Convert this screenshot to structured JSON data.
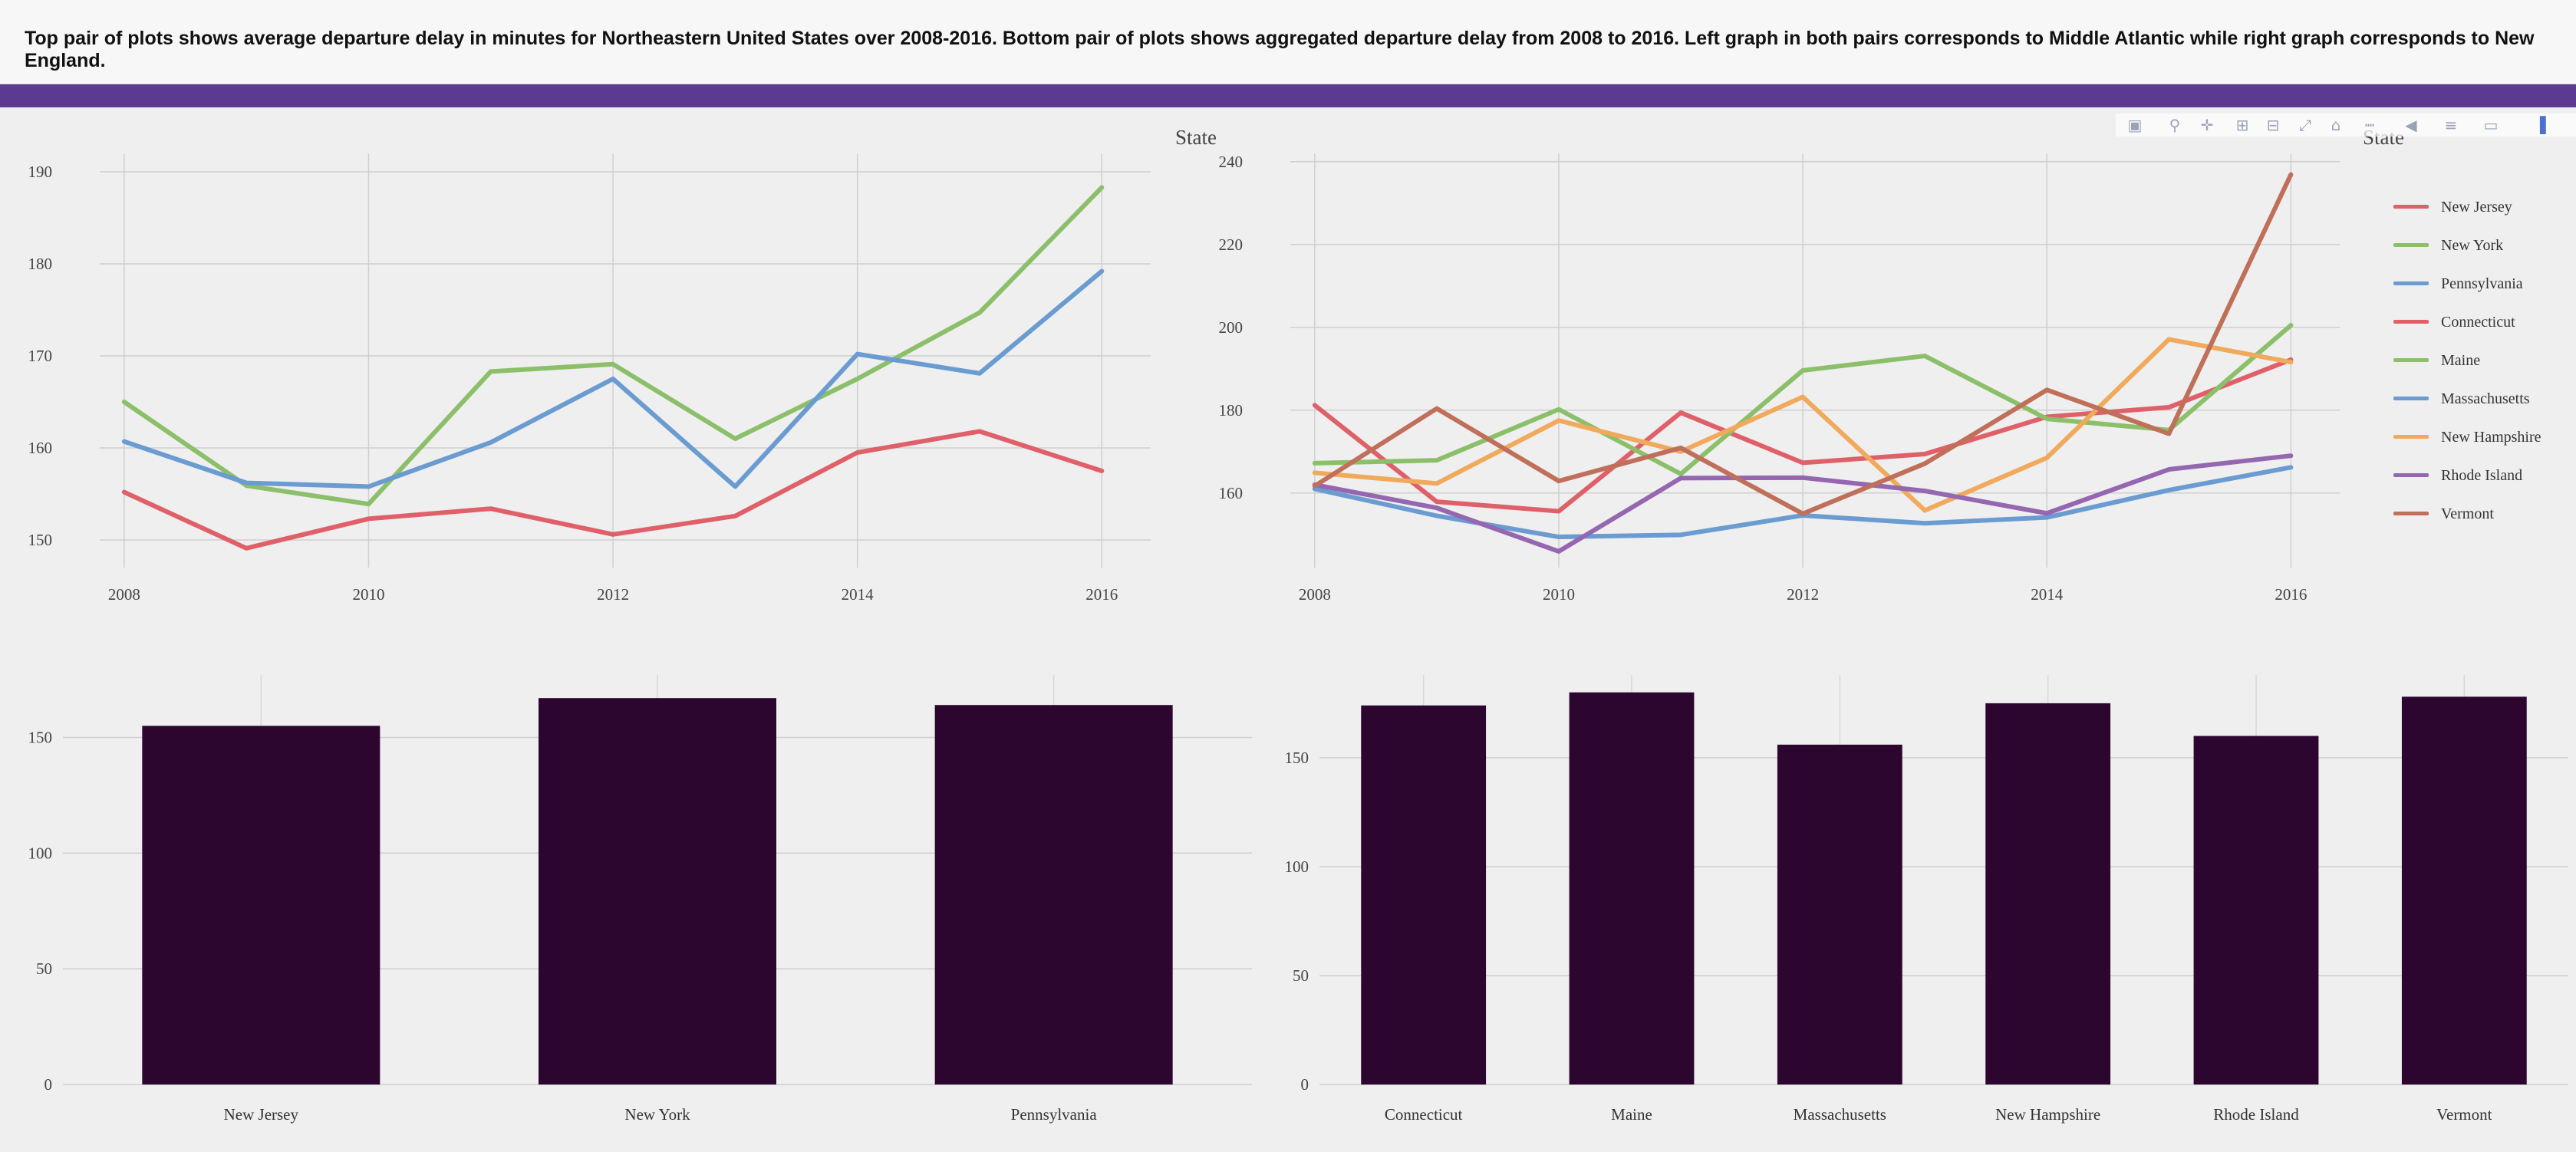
{
  "header": {
    "description": "Top pair of plots shows average departure delay in minutes for Northeastern United States over 2008-2016. Bottom pair of plots shows aggregated departure delay from 2008 to 2016. Left graph in both pairs corresponds to Middle Atlantic while right graph corresponds to New England."
  },
  "colors": {
    "red": "#e0606a",
    "green": "#8cbf6a",
    "blue": "#6a9bd1",
    "orange": "#f1a95b",
    "purple": "#9467b0",
    "brown": "#c0705a",
    "bar": "#2d0630",
    "header_bar": "#5b3b91"
  },
  "toolbar": {
    "icons": [
      "camera-icon",
      "zoom-icon",
      "pan-icon",
      "zoom-in-icon",
      "zoom-out-icon",
      "autoscale-icon",
      "reset-axes-icon",
      "spike-lines-icon",
      "hover-closest-icon",
      "hover-compare-icon",
      "book-icon",
      "plotly-logo-icon"
    ]
  },
  "chart_data": [
    {
      "id": "ma_line",
      "type": "line",
      "region": "Middle Atlantic",
      "x": [
        2008,
        2009,
        2010,
        2011,
        2012,
        2013,
        2014,
        2015,
        2016
      ],
      "xticks": [
        "2008",
        "2010",
        "2012",
        "2014",
        "2016"
      ],
      "xtick_values": [
        2008,
        2010,
        2012,
        2014,
        2016
      ],
      "xlim": [
        2007.8,
        2016.4
      ],
      "ylim": [
        147,
        192
      ],
      "yticks": [
        150,
        160,
        170,
        180,
        190
      ],
      "ytick_labels": [
        "150",
        "160",
        "170",
        "180",
        "190"
      ],
      "series": [
        {
          "name": "New Jersey",
          "color": "#e0606a",
          "values": [
            155.2,
            149.1,
            152.3,
            153.4,
            150.6,
            152.6,
            159.5,
            161.8,
            157.5
          ]
        },
        {
          "name": "New York",
          "color": "#8cbf6a",
          "values": [
            165.0,
            155.9,
            153.9,
            168.3,
            169.1,
            161.0,
            167.5,
            174.7,
            188.3
          ]
        },
        {
          "name": "Pennsylvania",
          "color": "#6a9bd1",
          "values": [
            160.7,
            156.2,
            155.8,
            160.6,
            167.5,
            155.8,
            170.2,
            168.1,
            179.2
          ]
        }
      ]
    },
    {
      "id": "ne_line",
      "type": "line",
      "region": "New England",
      "x": [
        2008,
        2009,
        2010,
        2011,
        2012,
        2013,
        2014,
        2015,
        2016
      ],
      "xticks": [
        "2008",
        "2010",
        "2012",
        "2014",
        "2016"
      ],
      "xtick_values": [
        2008,
        2010,
        2012,
        2014,
        2016
      ],
      "xlim": [
        2007.8,
        2016.4
      ],
      "ylim": [
        142,
        242
      ],
      "yticks": [
        160,
        180,
        200,
        220,
        240
      ],
      "ytick_labels": [
        "160",
        "180",
        "200",
        "220",
        "240"
      ],
      "legend_title": "State",
      "series": [
        {
          "name": "Connecticut",
          "color": "#e0606a",
          "values": [
            181.2,
            157.9,
            155.6,
            179.4,
            167.3,
            169.4,
            178.4,
            180.7,
            192.2
          ]
        },
        {
          "name": "Maine",
          "color": "#8cbf6a",
          "values": [
            167.2,
            167.9,
            180.2,
            164.6,
            189.6,
            193.1,
            177.9,
            175.2,
            200.5
          ]
        },
        {
          "name": "Massachusetts",
          "color": "#6a9bd1",
          "values": [
            161.0,
            154.5,
            149.4,
            149.9,
            154.6,
            152.7,
            154.1,
            160.7,
            166.2
          ]
        },
        {
          "name": "New Hampshire",
          "color": "#f1a95b",
          "values": [
            164.9,
            162.3,
            177.5,
            170.0,
            183.2,
            155.8,
            168.5,
            197.1,
            191.6
          ]
        },
        {
          "name": "Rhode Island",
          "color": "#9467b0",
          "values": [
            162.0,
            156.4,
            145.9,
            163.6,
            163.7,
            160.5,
            155.1,
            165.7,
            169.0
          ]
        },
        {
          "name": "Vermont",
          "color": "#c0705a",
          "values": [
            161.7,
            180.4,
            162.9,
            170.9,
            155.0,
            167.1,
            184.9,
            174.3,
            236.9
          ]
        }
      ]
    },
    {
      "id": "ma_bar",
      "type": "bar",
      "region": "Middle Atlantic",
      "categories": [
        "New Jersey",
        "New York",
        "Pennsylvania"
      ],
      "values": [
        155,
        167,
        164
      ],
      "ylim": [
        0,
        177
      ],
      "yticks": [
        0,
        50,
        100,
        150
      ],
      "ytick_labels": [
        "0",
        "50",
        "100",
        "150"
      ]
    },
    {
      "id": "ne_bar",
      "type": "bar",
      "region": "New England",
      "categories": [
        "Connecticut",
        "Maine",
        "Massachusetts",
        "New Hampshire",
        "Rhode Island",
        "Vermont"
      ],
      "values": [
        174,
        180,
        156,
        175,
        160,
        178
      ],
      "ylim": [
        0,
        188
      ],
      "yticks": [
        0,
        50,
        100,
        150
      ],
      "ytick_labels": [
        "0",
        "50",
        "100",
        "150"
      ]
    }
  ],
  "legends": {
    "combined_title": "State",
    "items": [
      {
        "name": "New Jersey",
        "color": "#e0606a"
      },
      {
        "name": "New York",
        "color": "#8cbf6a"
      },
      {
        "name": "Pennsylvania",
        "color": "#6a9bd1"
      },
      {
        "name": "Connecticut",
        "color": "#e0606a"
      },
      {
        "name": "Maine",
        "color": "#8cbf6a"
      },
      {
        "name": "Massachusetts",
        "color": "#6a9bd1"
      },
      {
        "name": "New Hampshire",
        "color": "#f1a95b"
      },
      {
        "name": "Rhode Island",
        "color": "#9467b0"
      },
      {
        "name": "Vermont",
        "color": "#c0705a"
      }
    ]
  }
}
